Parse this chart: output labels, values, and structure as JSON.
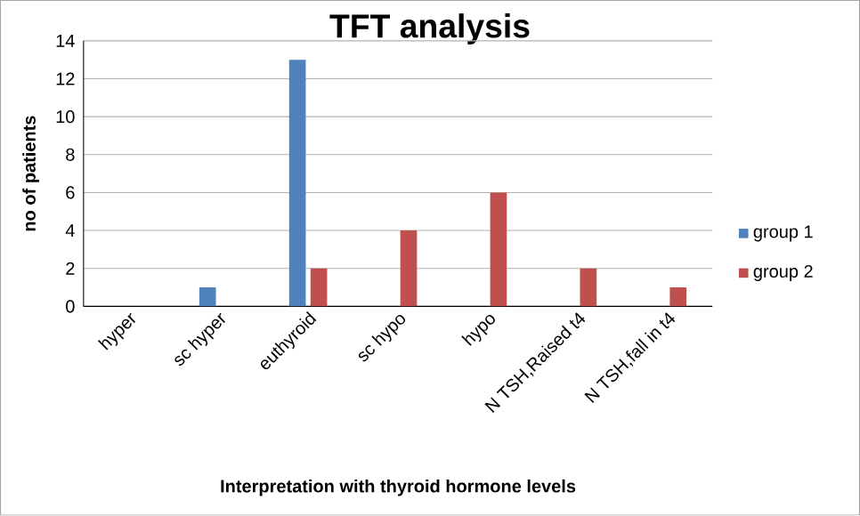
{
  "chart_data": {
    "type": "bar",
    "title": "TFT analysis",
    "xlabel": "Interpretation with thyroid hormone levels",
    "ylabel": "no of patients",
    "categories": [
      "hyper",
      "sc hyper",
      "euthyroid",
      "sc hypo",
      "hypo",
      "N TSH,Raised t4",
      "N TSH,fall in t4"
    ],
    "series": [
      {
        "name": "group 1",
        "color": "#4f81bd",
        "values": [
          0,
          1,
          13,
          0,
          0,
          0,
          0
        ]
      },
      {
        "name": "group 2",
        "color": "#c0504d",
        "values": [
          0,
          0,
          2,
          4,
          6,
          2,
          1
        ]
      }
    ],
    "ylim": [
      0,
      14
    ],
    "yticks": [
      0,
      2,
      4,
      6,
      8,
      10,
      12,
      14
    ],
    "grid": "y",
    "legend": "right"
  }
}
